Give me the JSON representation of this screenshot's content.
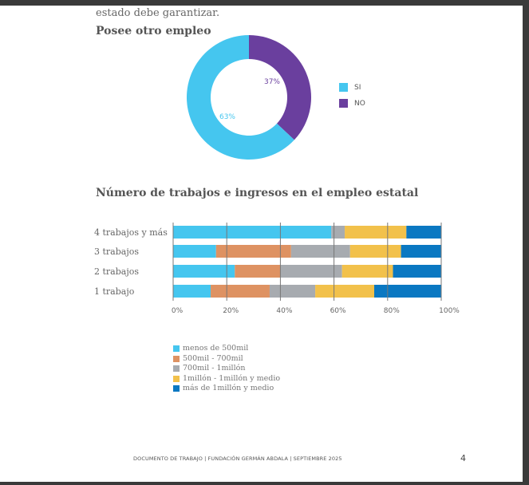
{
  "cut_text": "estado debe garantizar.",
  "chart_data": [
    {
      "type": "pie",
      "title": "Posee otro empleo",
      "categories": [
        "SI",
        "NO"
      ],
      "values": [
        63,
        37
      ],
      "labels": [
        "63%",
        "37%"
      ],
      "colors": [
        "#45c6ef",
        "#6a3f9e"
      ],
      "legend": "right"
    },
    {
      "type": "bar",
      "orientation": "horizontal",
      "stacked": true,
      "title": "Número de trabajos e ingresos en el empleo estatal",
      "categories": [
        "4 trabajos y más",
        "3 trabajos",
        "2 trabajos",
        "1 trabajo"
      ],
      "series": [
        {
          "name": "menos de 500mil",
          "color": "#45c6ef",
          "values": [
            59,
            16,
            23,
            14
          ]
        },
        {
          "name": "500mil - 700mil",
          "color": "#de9262",
          "values": [
            0,
            28,
            17,
            22
          ]
        },
        {
          "name": "700mil - 1millón",
          "color": "#a7abb0",
          "values": [
            5,
            22,
            23,
            17
          ]
        },
        {
          "name": "1millón - 1millón y medio",
          "color": "#f2c14b",
          "values": [
            23,
            19,
            19,
            22
          ]
        },
        {
          "name": "más de 1millón y medio",
          "color": "#0a78c2",
          "values": [
            13,
            15,
            18,
            25
          ]
        }
      ],
      "xlim": [
        0,
        100
      ],
      "xticks": [
        "0%",
        "20%",
        "40%",
        "60%",
        "80%",
        "100%"
      ],
      "grid": true,
      "legend": "bottom-left"
    }
  ],
  "footer": "DOCUMENTO DE TRABAJO | FUNDACIÓN GERMÁN ABDALA | SEPTIEMBRE 2025",
  "page_number": "4"
}
